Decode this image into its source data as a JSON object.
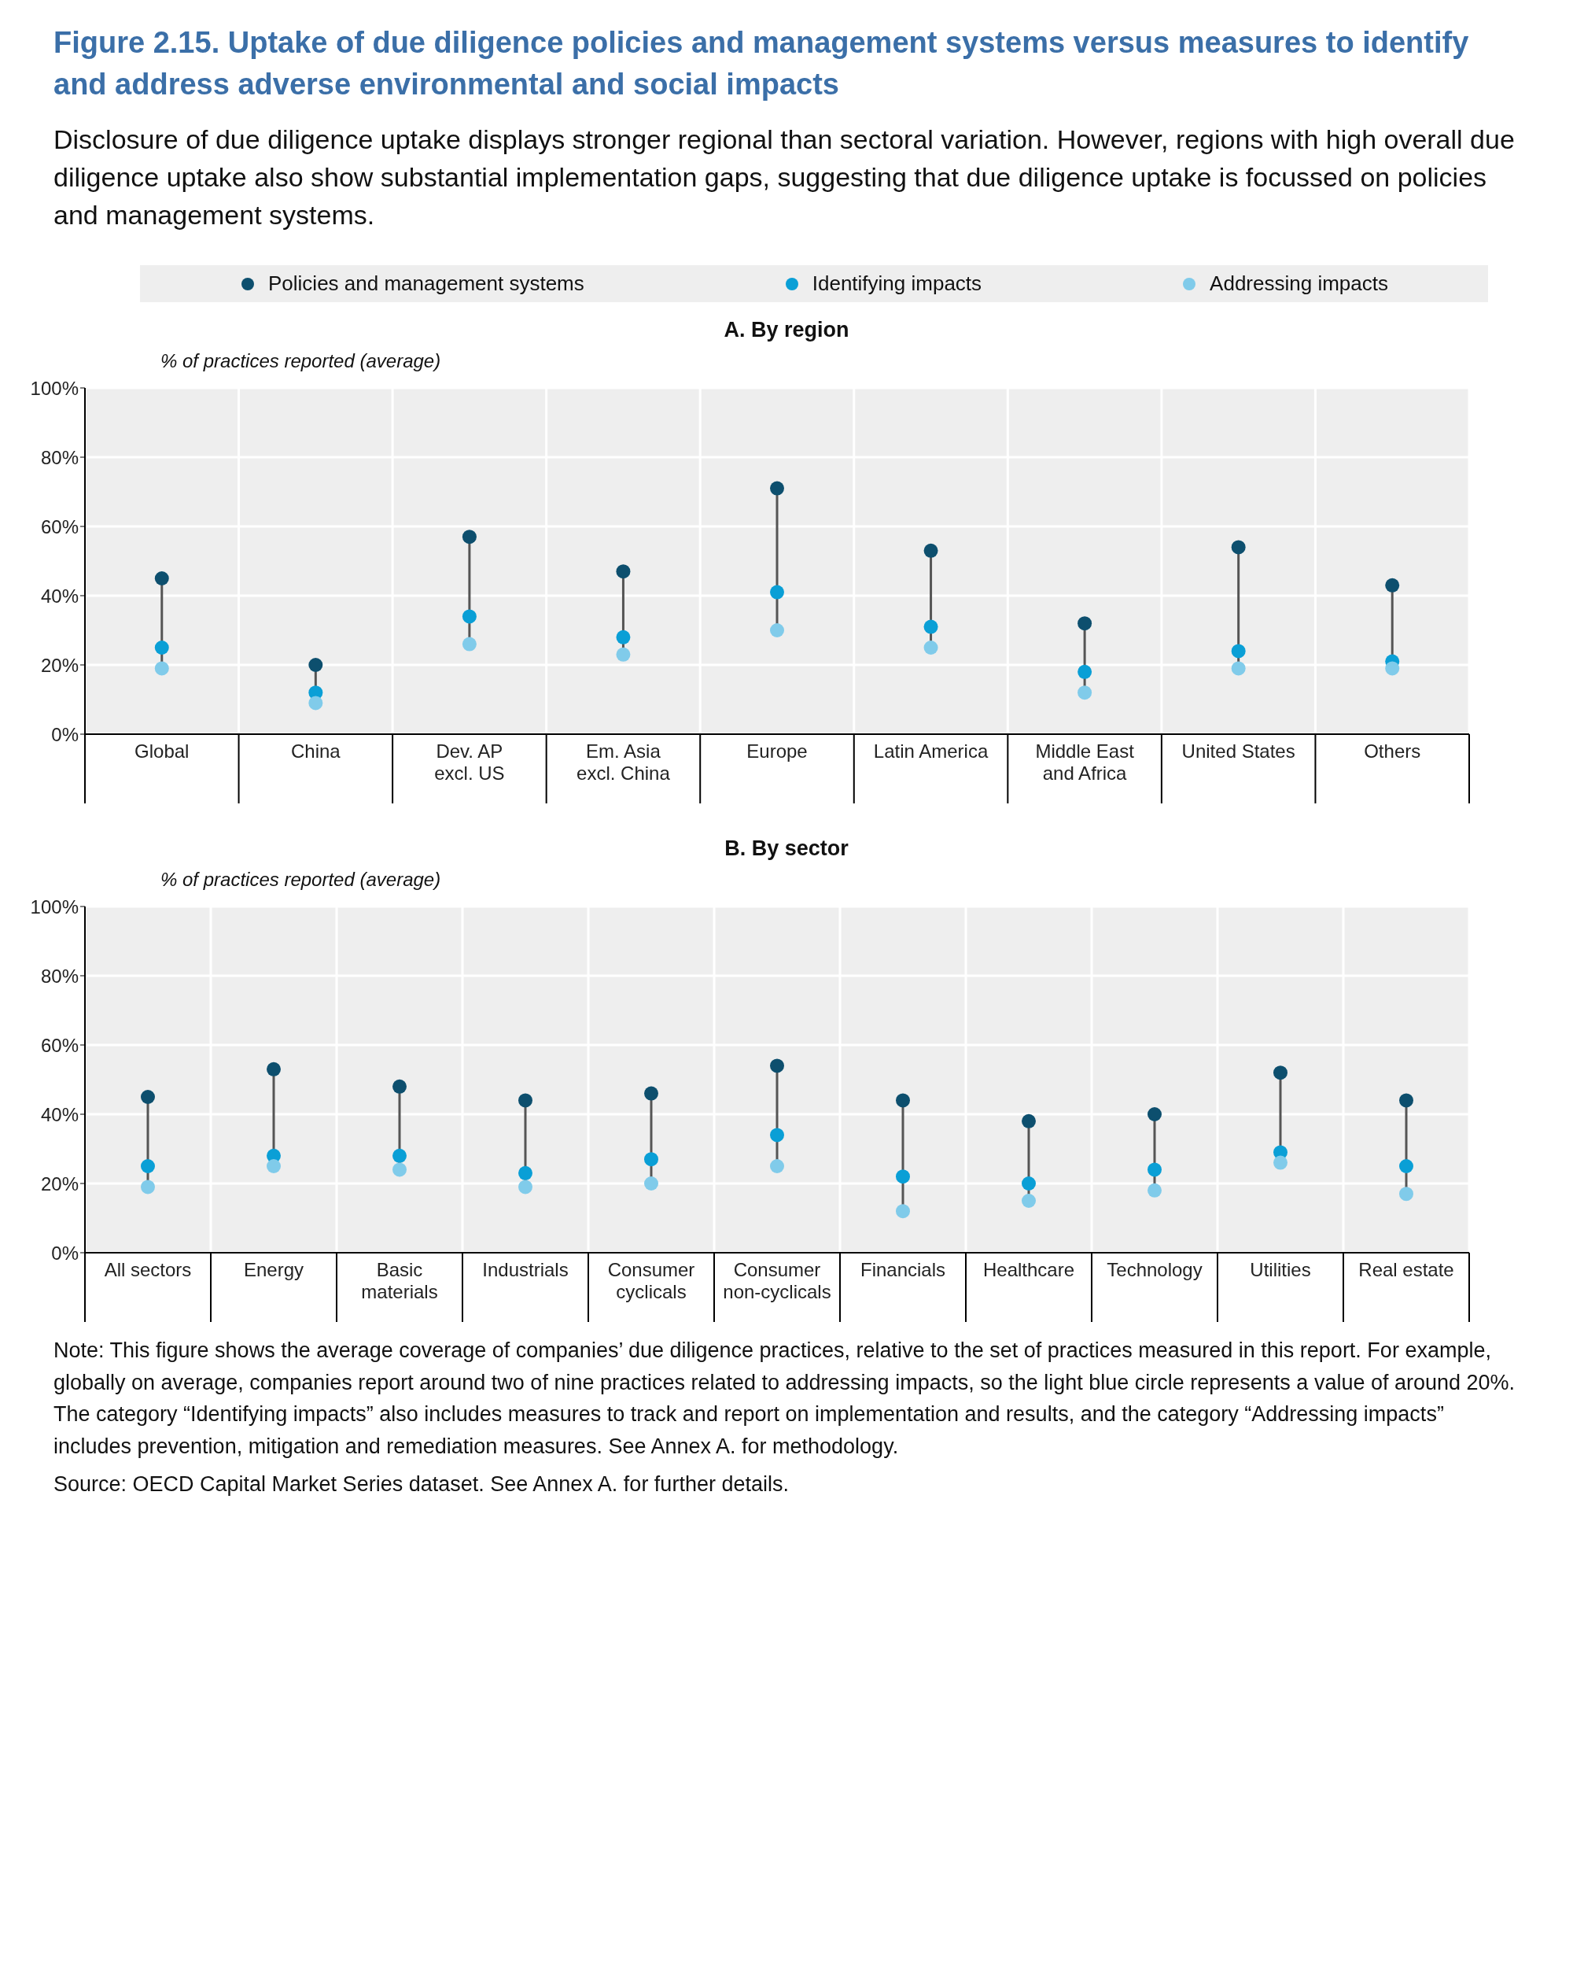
{
  "chart_data": [
    {
      "type": "scatter",
      "title": "Figure 2.15. Uptake of due diligence policies and management systems versus measures to identify and address adverse environmental and social impacts",
      "subtitle": "Disclosure of due diligence uptake displays stronger regional than sectoral variation. However, regions with high overall due diligence uptake also show substantial implementation gaps, suggesting that due diligence uptake is focussed on policies and management systems.",
      "annotations": [
        "A. By region"
      ],
      "ylabel": "% of practices reported (average)",
      "categories": [
        "Global",
        "China",
        "Dev. AP excl. US",
        "Em. Asia excl. China",
        "Europe",
        "Latin America",
        "Middle East and Africa",
        "United States",
        "Others"
      ],
      "series": [
        {
          "name": "Policies and management systems",
          "color": "#0d4f6e",
          "values": [
            45,
            20,
            57,
            47,
            71,
            53,
            32,
            54,
            43
          ]
        },
        {
          "name": "Identifying impacts",
          "color": "#0a9fd6",
          "values": [
            25,
            12,
            34,
            28,
            41,
            31,
            18,
            24,
            21
          ]
        },
        {
          "name": "Addressing impacts",
          "color": "#80cbea",
          "values": [
            19,
            9,
            26,
            23,
            30,
            25,
            12,
            19,
            19
          ]
        }
      ],
      "ylim": [
        0,
        100
      ],
      "yticks": [
        {
          "value": 0,
          "label": "0%"
        },
        {
          "value": 20,
          "label": "20%"
        },
        {
          "value": 40,
          "label": "40%"
        },
        {
          "value": 60,
          "label": "60%"
        },
        {
          "value": 80,
          "label": "80%"
        },
        {
          "value": 100,
          "label": "100%"
        }
      ],
      "grid": true,
      "legend": "top",
      "marker": "circle"
    },
    {
      "type": "scatter",
      "title": "B. By sector",
      "ylabel": "% of practices reported (average)",
      "categories": [
        "All sectors",
        "Energy",
        "Basic materials",
        "Industrials",
        "Consumer cyclicals",
        "Consumer non-cyclicals",
        "Financials",
        "Healthcare",
        "Technology",
        "Utilities",
        "Real estate"
      ],
      "series": [
        {
          "color": "#0d4f6e",
          "values": [
            45,
            53,
            48,
            44,
            46,
            54,
            44,
            38,
            40,
            52,
            44
          ]
        },
        {
          "color": "#0a9fd6",
          "values": [
            25,
            28,
            28,
            23,
            27,
            34,
            22,
            20,
            24,
            29,
            25
          ]
        },
        {
          "color": "#80cbea",
          "values": [
            19,
            25,
            24,
            19,
            20,
            25,
            12,
            15,
            18,
            26,
            17
          ]
        }
      ],
      "ylim": [
        0,
        100
      ],
      "yticks": [
        {
          "value": 0,
          "label": "0%"
        },
        {
          "value": 20,
          "label": "20%"
        },
        {
          "value": 40,
          "label": "40%"
        },
        {
          "value": 60,
          "label": "60%"
        },
        {
          "value": 80,
          "label": "80%"
        },
        {
          "value": 100,
          "label": "100%"
        }
      ],
      "grid": true,
      "marker": "circle",
      "annotations": [
        "Note: This figure shows the average coverage of companies’ due diligence practices, relative to the set of practices measured in this report. For example, globally on average, companies report around two of nine practices related to addressing impacts, so the light blue circle represents a value of around 20%. The category “Identifying impacts” also includes measures to track and report on implementation and results, and the category “Addressing impacts” includes prevention, mitigation and remediation measures. See Annex A. for methodology.",
        "Source: OECD Capital Market Series dataset. See Annex A. for further details."
      ]
    }
  ]
}
